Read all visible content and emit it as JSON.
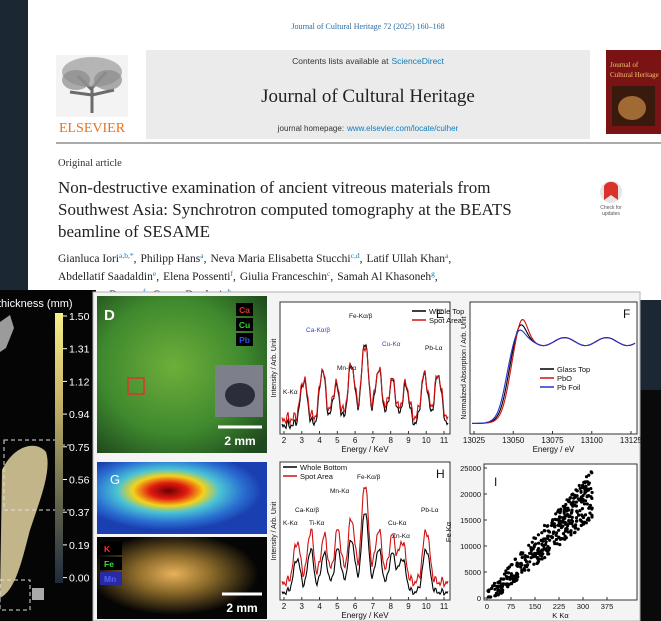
{
  "header": {
    "citation": "Journal of Cultural Heritage 72 (2025) 160–168",
    "contents": "Contents lists available at",
    "sciencedirect": "ScienceDirect",
    "journal": "Journal of Cultural Heritage",
    "homepage_label": "journal homepage:",
    "homepage_url": "www.elsevier.com/locate/culher",
    "publisher": "ELSEVIER",
    "cover_title": [
      "Journal of",
      "Cultural Heritage"
    ]
  },
  "article": {
    "type": "Original article",
    "title": [
      "Non-destructive examination of ancient vitreous materials from",
      "Southwest Asia: Synchrotron computed tomography at the BEATS",
      "beamline of SESAME"
    ],
    "badge": [
      "Check for",
      "updates"
    ],
    "authors": [
      [
        {
          "name": "Gianluca Iori",
          "aff": "a,b,*",
          "sep": ","
        },
        {
          "name": "Philipp Hans",
          "aff": "a",
          "sep": ","
        },
        {
          "name": "Neva Maria Elisabetta Stucchi",
          "aff": "c,d",
          "sep": ","
        },
        {
          "name": "Latif Ullah Khan",
          "aff": "a",
          "sep": ","
        }
      ],
      [
        {
          "name": "Abdellatif Saadaldin",
          "aff": "e",
          "sep": ","
        },
        {
          "name": "Elena Possenti",
          "aff": "f",
          "sep": ","
        },
        {
          "name": "Giulia Franceschin",
          "aff": "c",
          "sep": ","
        },
        {
          "name": "Samah Al Khasoneh",
          "aff": "g",
          "sep": ","
        }
      ],
      [
        {
          "name": "Gian Luca Bonora",
          "aff": "f",
          "sep": ","
        },
        {
          "name": "Gonca Dardeniz",
          "aff": "h"
        }
      ]
    ]
  },
  "figure": {
    "colorbar": {
      "title": "thickness (mm)",
      "ticks": [
        "1.50",
        "1.31",
        "1.12",
        "0.94",
        "0.75",
        "0.56",
        "0.37",
        "0.19",
        "0.00"
      ]
    },
    "D": {
      "label": "D",
      "legend": [
        "Ca",
        "Cu",
        "Pb"
      ],
      "scale": "2 mm"
    },
    "E": {
      "label": "E",
      "legend": [
        "Whole Top",
        "Spot Area"
      ],
      "peaks": [
        "K-Kα",
        "Ca-Kα/β",
        "Mn-Kα",
        "Fe-Kα/β",
        "Cu-Kα",
        "Pb-Lα"
      ],
      "ylabel": "Intensity / Arb. Unit",
      "xticks": [
        2,
        3,
        4,
        5,
        6,
        7,
        8,
        9,
        10,
        11
      ],
      "xlabel": "Energy / KeV"
    },
    "F": {
      "label": "F",
      "legend": [
        "Glass Top",
        "PbO",
        "Pb Foil"
      ],
      "ylabel": "Normalized Absorption / Arb. Unit",
      "xticks": [
        13025,
        13050,
        13075,
        13100,
        13125
      ],
      "xlabel": "Energy / eV"
    },
    "G": {
      "label": "G",
      "legend": [
        "K",
        "Fe",
        "Mn"
      ],
      "scale": "2 mm"
    },
    "H": {
      "label": "H",
      "legend": [
        "Whole Bottom",
        "Spot Area"
      ],
      "peaks": [
        "Ca-Kα/β",
        "K-Kα",
        "Ti-Kα",
        "Mn-Kα",
        "Fe-Kα/β",
        "Cu-Kα",
        "Zn-Kα",
        "Pb-Lα"
      ],
      "ylabel": "Intensity / Arb. Unit",
      "xticks": [
        2,
        3,
        4,
        5,
        6,
        7,
        8,
        9,
        10,
        11
      ],
      "xlabel": "Energy / KeV"
    },
    "I": {
      "label": "I",
      "ylabel": "Fe Kα",
      "yticks": [
        25000,
        20000,
        15000,
        10000,
        5000,
        0
      ],
      "xticks": [
        0,
        75,
        150,
        225,
        300,
        375
      ],
      "xlabel": "K Kα"
    }
  }
}
